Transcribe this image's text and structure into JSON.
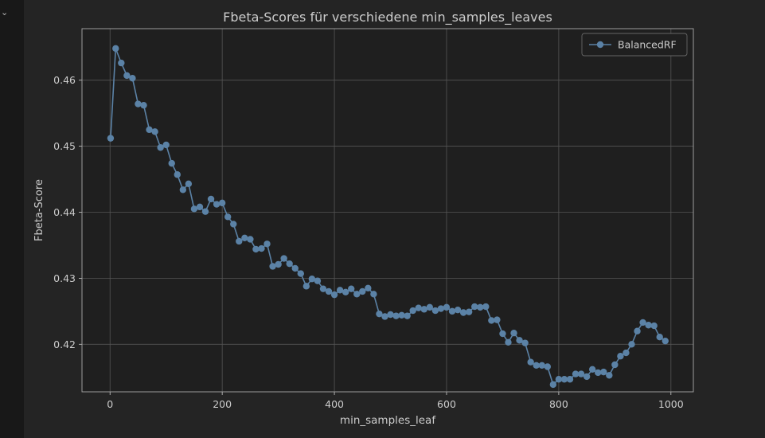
{
  "notebook": {
    "collapse_glyph": "⌄"
  },
  "chart_data": {
    "type": "line",
    "title": "Fbeta-Scores für verschiedene min_samples_leaves",
    "xlabel": "min_samples_leaf",
    "ylabel": "Fbeta-Score",
    "xlim": [
      -50,
      1040
    ],
    "ylim": [
      0.4128,
      0.4678
    ],
    "xticks": [
      0,
      200,
      400,
      600,
      800,
      1000
    ],
    "xtick_labels": [
      "0",
      "200",
      "400",
      "600",
      "800",
      "1000"
    ],
    "yticks": [
      0.42,
      0.43,
      0.44,
      0.45,
      0.46
    ],
    "ytick_labels": [
      "0.42",
      "0.43",
      "0.44",
      "0.45",
      "0.46"
    ],
    "grid": true,
    "legend_position": "top-right",
    "colors": {
      "series": "#5b82a6",
      "background": "#242424",
      "axes_face": "#1f1f1f",
      "grid": "#555555",
      "text": "#cccccc"
    },
    "series": [
      {
        "name": "BalancedRF",
        "x": [
          1,
          10,
          20,
          30,
          40,
          50,
          60,
          70,
          80,
          90,
          100,
          110,
          120,
          130,
          140,
          150,
          160,
          170,
          180,
          190,
          200,
          210,
          220,
          230,
          240,
          250,
          260,
          270,
          280,
          290,
          300,
          310,
          320,
          330,
          340,
          350,
          360,
          370,
          380,
          390,
          400,
          410,
          420,
          430,
          440,
          450,
          460,
          470,
          480,
          490,
          500,
          510,
          520,
          530,
          540,
          550,
          560,
          570,
          580,
          590,
          600,
          610,
          620,
          630,
          640,
          650,
          660,
          670,
          680,
          690,
          700,
          710,
          720,
          730,
          740,
          750,
          760,
          770,
          780,
          790,
          800,
          810,
          820,
          830,
          840,
          850,
          860,
          870,
          880,
          890,
          900,
          910,
          920,
          930,
          940,
          950,
          960,
          970,
          980,
          990
        ],
        "y": [
          0.4512,
          0.4648,
          0.4626,
          0.4607,
          0.4603,
          0.4564,
          0.4562,
          0.4525,
          0.4522,
          0.4498,
          0.4502,
          0.4474,
          0.4457,
          0.4434,
          0.4443,
          0.4405,
          0.4408,
          0.4401,
          0.442,
          0.4412,
          0.4414,
          0.4393,
          0.4382,
          0.4356,
          0.4361,
          0.4359,
          0.4344,
          0.4345,
          0.4352,
          0.4318,
          0.4321,
          0.433,
          0.4322,
          0.4315,
          0.4307,
          0.4288,
          0.4299,
          0.4296,
          0.4284,
          0.428,
          0.4275,
          0.4282,
          0.4279,
          0.4284,
          0.4276,
          0.428,
          0.4285,
          0.4276,
          0.4246,
          0.4242,
          0.4245,
          0.4243,
          0.4244,
          0.4243,
          0.4251,
          0.4255,
          0.4253,
          0.4256,
          0.4251,
          0.4254,
          0.4256,
          0.425,
          0.4252,
          0.4248,
          0.4249,
          0.4257,
          0.4256,
          0.4257,
          0.4236,
          0.4237,
          0.4216,
          0.4203,
          0.4217,
          0.4206,
          0.4202,
          0.4173,
          0.4168,
          0.4168,
          0.4166,
          0.4139,
          0.4147,
          0.4147,
          0.4147,
          0.4155,
          0.4155,
          0.4151,
          0.4162,
          0.4157,
          0.4158,
          0.4153,
          0.4169,
          0.4182,
          0.4187,
          0.42,
          0.422,
          0.4233,
          0.4229,
          0.4228,
          0.4211,
          0.4205
        ]
      }
    ]
  }
}
